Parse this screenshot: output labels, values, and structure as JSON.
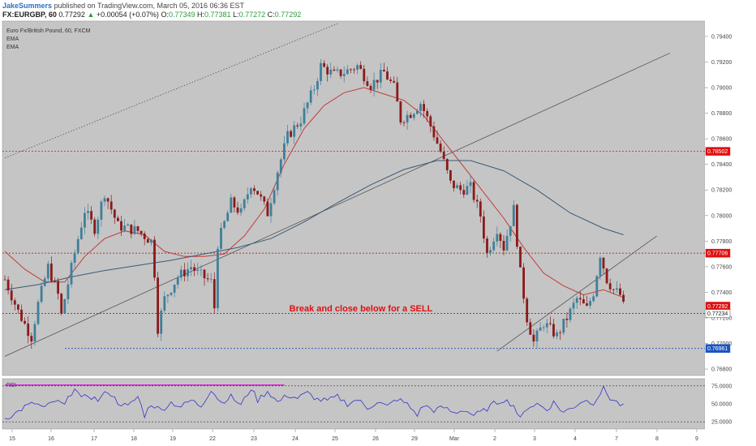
{
  "header": {
    "line1": {
      "author": "JakeSummers",
      "published_text": "published on TradingView.com, March 05, 2016 06:36 EST"
    },
    "line2": {
      "symbol": "FX:EURGBP, 60",
      "last": "0.77292",
      "change": "+0.00054 (+0.07%)",
      "o_label": "O:",
      "o": "0.77349",
      "h_label": "H:",
      "h": "0.77381",
      "l_label": "L:",
      "l": "0.77272",
      "c_label": "C:",
      "c": "0.77292"
    }
  },
  "legend": {
    "title": "Euro Fx/British Pound, 60, FXCM",
    "ema1": "EMA",
    "ema2": "EMA"
  },
  "annotation": "Break and close below for a SELL",
  "rsi_label": "RSI",
  "colors": {
    "background": "#c5c5c5",
    "up_candle": "#3f7f9a",
    "down_candle": "#8a1a1a",
    "ema_fast": "#c23b3b",
    "ema_slow": "#3a5a78",
    "rsi_line": "#3434c8",
    "rsi_band": "#e000e0",
    "level_red": "#e01010",
    "level_blue": "#1a55c0",
    "level_dark": "#333333",
    "annotation": "#e01010"
  },
  "chart_data": {
    "type": "candlestick",
    "x_ticks": [
      "15",
      "16",
      "17",
      "18",
      "19",
      "22",
      "23",
      "24",
      "25",
      "26",
      "29",
      "Mar",
      "2",
      "3",
      "4",
      "7",
      "8",
      "9"
    ],
    "y_ticks": [
      "0.79400",
      "0.79200",
      "0.79000",
      "0.78800",
      "0.78600",
      "0.78400",
      "0.78200",
      "0.78000",
      "0.77800",
      "0.77600",
      "0.77400",
      "0.77200",
      "0.77000",
      "0.76800"
    ],
    "ylim": [
      0.7675,
      0.7952
    ],
    "price_labels": [
      {
        "value": 0.78502,
        "label": "0.78502",
        "style": "red"
      },
      {
        "value": 0.77706,
        "label": "0.77706",
        "style": "red"
      },
      {
        "value": 0.77292,
        "label": "0.77292",
        "style": "red"
      },
      {
        "value": 0.77234,
        "label": "0.77234",
        "style": "dark"
      },
      {
        "value": 0.76961,
        "label": "0.76961",
        "style": "blue"
      }
    ],
    "close_path": [
      [
        0,
        0.775
      ],
      [
        4,
        0.7725
      ],
      [
        8,
        0.7705
      ],
      [
        10,
        0.7731
      ],
      [
        13,
        0.776
      ],
      [
        16,
        0.7738
      ],
      [
        17,
        0.7722
      ],
      [
        18,
        0.7735
      ],
      [
        21,
        0.7771
      ],
      [
        24,
        0.7804
      ],
      [
        27,
        0.779
      ],
      [
        30,
        0.7818
      ],
      [
        34,
        0.7792
      ],
      [
        40,
        0.7788
      ],
      [
        44,
        0.778
      ],
      [
        45,
        0.7755
      ],
      [
        46,
        0.7712
      ],
      [
        48,
        0.7735
      ],
      [
        52,
        0.7752
      ],
      [
        56,
        0.776
      ],
      [
        58,
        0.7755
      ],
      [
        62,
        0.7748
      ],
      [
        63,
        0.7728
      ],
      [
        64,
        0.7778
      ],
      [
        68,
        0.781
      ],
      [
        71,
        0.7802
      ],
      [
        74,
        0.7825
      ],
      [
        76,
        0.7818
      ],
      [
        79,
        0.7802
      ],
      [
        82,
        0.7835
      ],
      [
        85,
        0.7862
      ],
      [
        89,
        0.7875
      ],
      [
        93,
        0.79
      ],
      [
        95,
        0.7917
      ],
      [
        99,
        0.791
      ],
      [
        102,
        0.7912
      ],
      [
        106,
        0.7917
      ],
      [
        110,
        0.7902
      ],
      [
        114,
        0.7912
      ],
      [
        117,
        0.79
      ],
      [
        119,
        0.7875
      ],
      [
        122,
        0.788
      ],
      [
        125,
        0.7888
      ],
      [
        128,
        0.787
      ],
      [
        131,
        0.785
      ],
      [
        134,
        0.7825
      ],
      [
        137,
        0.782
      ],
      [
        140,
        0.7822
      ],
      [
        143,
        0.78
      ],
      [
        145,
        0.777
      ],
      [
        148,
        0.779
      ],
      [
        150,
        0.7775
      ],
      [
        153,
        0.7805
      ],
      [
        155,
        0.7755
      ],
      [
        157,
        0.772
      ],
      [
        159,
        0.7701
      ],
      [
        162,
        0.7716
      ],
      [
        166,
        0.7706
      ],
      [
        169,
        0.772
      ],
      [
        172,
        0.7735
      ],
      [
        175,
        0.7727
      ],
      [
        177,
        0.774
      ],
      [
        179,
        0.777
      ],
      [
        181,
        0.775
      ],
      [
        183,
        0.7742
      ],
      [
        185,
        0.7738
      ],
      [
        186,
        0.7729
      ]
    ],
    "n_bars": 187,
    "ema_fast": [
      [
        0,
        0.7772
      ],
      [
        6,
        0.7758
      ],
      [
        12,
        0.7748
      ],
      [
        18,
        0.7748
      ],
      [
        24,
        0.7768
      ],
      [
        30,
        0.7782
      ],
      [
        36,
        0.7788
      ],
      [
        42,
        0.7785
      ],
      [
        48,
        0.7772
      ],
      [
        54,
        0.7768
      ],
      [
        60,
        0.7768
      ],
      [
        66,
        0.777
      ],
      [
        72,
        0.7784
      ],
      [
        78,
        0.7805
      ],
      [
        84,
        0.784
      ],
      [
        90,
        0.7868
      ],
      [
        96,
        0.7886
      ],
      [
        102,
        0.7896
      ],
      [
        108,
        0.79
      ],
      [
        114,
        0.7895
      ],
      [
        120,
        0.789
      ],
      [
        126,
        0.7878
      ],
      [
        132,
        0.7858
      ],
      [
        138,
        0.7838
      ],
      [
        144,
        0.7818
      ],
      [
        150,
        0.7798
      ],
      [
        156,
        0.7775
      ],
      [
        162,
        0.7755
      ],
      [
        168,
        0.7745
      ],
      [
        174,
        0.7738
      ],
      [
        180,
        0.7742
      ],
      [
        186,
        0.7736
      ]
    ],
    "ema_slow": [
      [
        0,
        0.7742
      ],
      [
        10,
        0.7746
      ],
      [
        20,
        0.7752
      ],
      [
        30,
        0.7757
      ],
      [
        40,
        0.7761
      ],
      [
        50,
        0.7765
      ],
      [
        60,
        0.777
      ],
      [
        70,
        0.7775
      ],
      [
        80,
        0.7782
      ],
      [
        90,
        0.7795
      ],
      [
        100,
        0.781
      ],
      [
        110,
        0.7824
      ],
      [
        120,
        0.7836
      ],
      [
        130,
        0.7843
      ],
      [
        140,
        0.7843
      ],
      [
        150,
        0.7835
      ],
      [
        160,
        0.782
      ],
      [
        170,
        0.7802
      ],
      [
        180,
        0.779
      ],
      [
        186,
        0.7785
      ]
    ],
    "trendlines": [
      {
        "from": [
          0,
          0.769
        ],
        "to": [
          200,
          0.7927
        ],
        "style": "solid"
      },
      {
        "from": [
          0,
          0.7845
        ],
        "to": [
          100,
          0.795
        ],
        "style": "dotted"
      },
      {
        "from": [
          148,
          0.7694
        ],
        "to": [
          196,
          0.7784
        ],
        "style": "solid"
      }
    ],
    "rsi": {
      "ylim": [
        15,
        85
      ],
      "y_ticks": [
        "75.0000",
        "50.0000",
        "25.0000"
      ],
      "upper": 75,
      "lower": 25,
      "path": [
        [
          0,
          30
        ],
        [
          3,
          36
        ],
        [
          6,
          46
        ],
        [
          9,
          51
        ],
        [
          12,
          44
        ],
        [
          15,
          54
        ],
        [
          18,
          48
        ],
        [
          21,
          74
        ],
        [
          23,
          56
        ],
        [
          25,
          62
        ],
        [
          28,
          55
        ],
        [
          31,
          68
        ],
        [
          34,
          52
        ],
        [
          37,
          46
        ],
        [
          40,
          60
        ],
        [
          42,
          34
        ],
        [
          44,
          50
        ],
        [
          47,
          41
        ],
        [
          50,
          52
        ],
        [
          53,
          46
        ],
        [
          56,
          55
        ],
        [
          59,
          47
        ],
        [
          62,
          70
        ],
        [
          65,
          52
        ],
        [
          68,
          60
        ],
        [
          71,
          48
        ],
        [
          74,
          72
        ],
        [
          76,
          55
        ],
        [
          79,
          68
        ],
        [
          82,
          52
        ],
        [
          85,
          62
        ],
        [
          88,
          58
        ],
        [
          91,
          65
        ],
        [
          94,
          56
        ],
        [
          97,
          54
        ],
        [
          100,
          60
        ],
        [
          103,
          50
        ],
        [
          106,
          56
        ],
        [
          109,
          44
        ],
        [
          112,
          53
        ],
        [
          115,
          46
        ],
        [
          118,
          57
        ],
        [
          121,
          49
        ],
        [
          124,
          35
        ],
        [
          126,
          48
        ],
        [
          129,
          41
        ],
        [
          132,
          45
        ],
        [
          135,
          37
        ],
        [
          138,
          42
        ],
        [
          141,
          34
        ],
        [
          144,
          40
        ],
        [
          147,
          50
        ],
        [
          150,
          56
        ],
        [
          153,
          48
        ],
        [
          155,
          28
        ],
        [
          157,
          45
        ],
        [
          160,
          50
        ],
        [
          163,
          42
        ],
        [
          165,
          52
        ],
        [
          168,
          38
        ],
        [
          171,
          46
        ],
        [
          174,
          55
        ],
        [
          177,
          52
        ],
        [
          180,
          71
        ],
        [
          182,
          58
        ],
        [
          184,
          52
        ],
        [
          186,
          46
        ]
      ]
    }
  }
}
